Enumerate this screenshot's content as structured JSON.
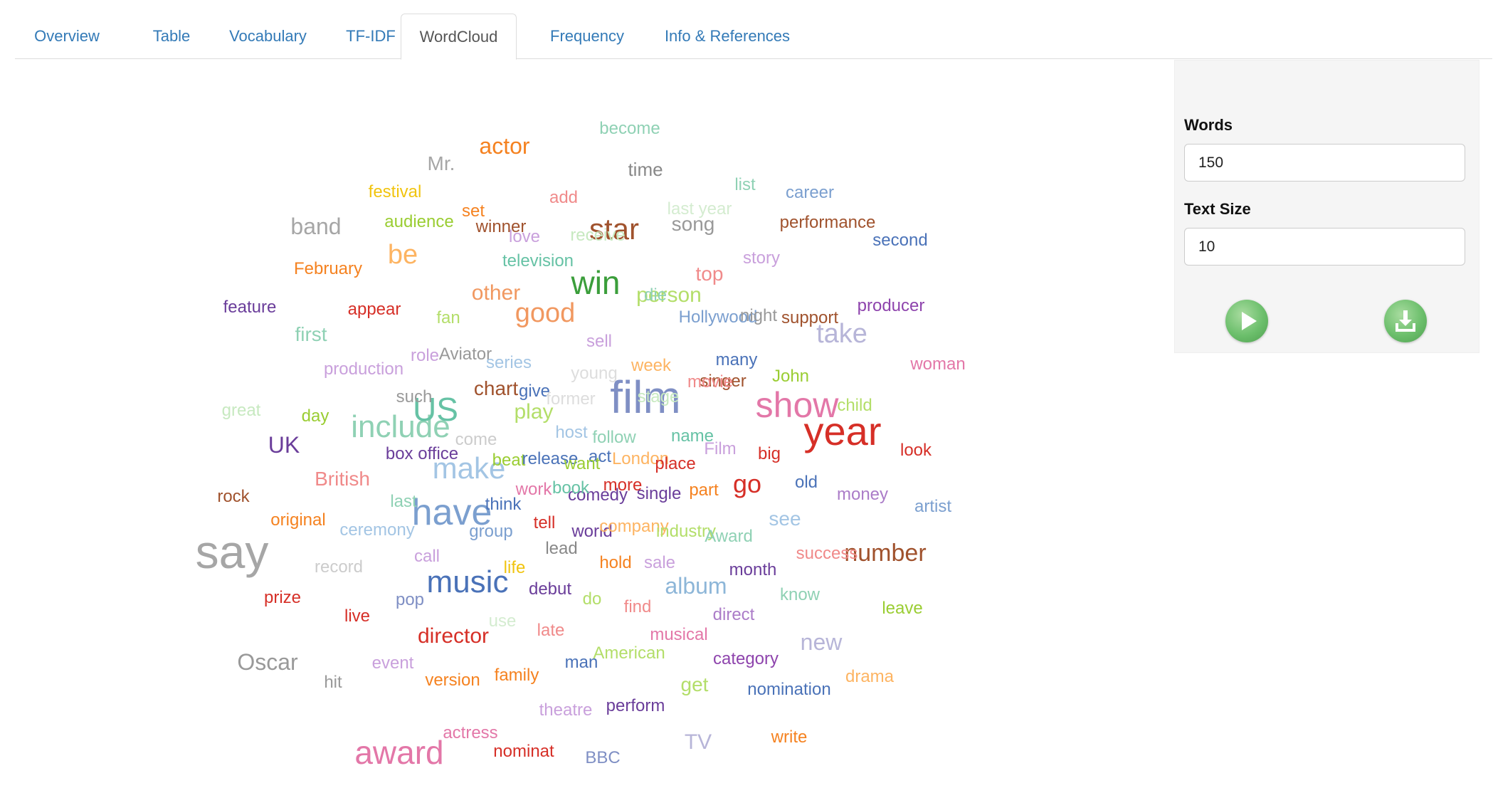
{
  "tabs": [
    {
      "label": "Overview",
      "active": false
    },
    {
      "label": "Table",
      "active": false
    },
    {
      "label": "Vocabulary",
      "active": false
    },
    {
      "label": "TF-IDF",
      "active": false
    },
    {
      "label": "WordCloud",
      "active": true
    },
    {
      "label": "Frequency",
      "active": false
    },
    {
      "label": "Info & References",
      "active": false
    }
  ],
  "controls": {
    "words_label": "Words",
    "words_value": "150",
    "text_size_label": "Text Size",
    "text_size_value": "10",
    "play_icon": "play-icon",
    "download_icon": "download-icon"
  },
  "wordcloud": [
    {
      "text": "say",
      "color": "#a6a6a6"
    },
    {
      "text": "film",
      "color": "#7f8fc4"
    },
    {
      "text": "year",
      "color": "#d62f27"
    },
    {
      "text": "show",
      "color": "#e377a8"
    },
    {
      "text": "have",
      "color": "#7b9fcf"
    },
    {
      "text": "music",
      "color": "#4a72b8"
    },
    {
      "text": "award",
      "color": "#e377a8"
    },
    {
      "text": "include",
      "color": "#8fd1b4"
    },
    {
      "text": "make",
      "color": "#a3c5e4"
    },
    {
      "text": "win",
      "color": "#3b9e3b"
    },
    {
      "text": "US",
      "color": "#66c2a5"
    },
    {
      "text": "good",
      "color": "#f19860"
    },
    {
      "text": "star",
      "color": "#a0522d"
    },
    {
      "text": "take",
      "color": "#b7b5d8"
    },
    {
      "text": "number",
      "color": "#a0522d"
    },
    {
      "text": "album",
      "color": "#8db6d8"
    },
    {
      "text": "be",
      "color": "#fdb462"
    },
    {
      "text": "Oscar",
      "color": "#999999"
    },
    {
      "text": "UK",
      "color": "#6a3d9a"
    },
    {
      "text": "go",
      "color": "#d62f27"
    },
    {
      "text": "director",
      "color": "#d62f27"
    },
    {
      "text": "actor",
      "color": "#f58220"
    },
    {
      "text": "band",
      "color": "#a6a6a6"
    },
    {
      "text": "person",
      "color": "#b3de69"
    },
    {
      "text": "other",
      "color": "#f19860"
    },
    {
      "text": "play",
      "color": "#b3de69"
    },
    {
      "text": "British",
      "color": "#f08a8a"
    },
    {
      "text": "chart",
      "color": "#a0522d"
    },
    {
      "text": "new",
      "color": "#b7b5d8"
    },
    {
      "text": "song",
      "color": "#999999"
    },
    {
      "text": "Mr.",
      "color": "#a6a6a6"
    },
    {
      "text": "TV",
      "color": "#b7b5d8"
    },
    {
      "text": "top",
      "color": "#f08a8a"
    },
    {
      "text": "first",
      "color": "#8fd1b4"
    },
    {
      "text": "see",
      "color": "#a3c5e4"
    },
    {
      "text": "time",
      "color": "#888888"
    },
    {
      "text": "Aviator",
      "color": "#999999"
    },
    {
      "text": "become",
      "color": "#8fd1b4"
    },
    {
      "text": "performance",
      "color": "#a0522d"
    },
    {
      "text": "singer",
      "color": "#a0522d"
    },
    {
      "text": "February",
      "color": "#f58220"
    },
    {
      "text": "audience",
      "color": "#9acd32"
    },
    {
      "text": "winner",
      "color": "#a0522d"
    },
    {
      "text": "television",
      "color": "#66c2a5"
    },
    {
      "text": "Hollywood",
      "color": "#7b9fcf"
    },
    {
      "text": "production",
      "color": "#c9a0dc"
    },
    {
      "text": "box office",
      "color": "#6a3d9a"
    },
    {
      "text": "comedy",
      "color": "#6a3d9a"
    },
    {
      "text": "single",
      "color": "#6a3d9a"
    },
    {
      "text": "second",
      "color": "#4a72b8"
    },
    {
      "text": "producer",
      "color": "#8e44ad"
    },
    {
      "text": "woman",
      "color": "#e377a8"
    },
    {
      "text": "artist",
      "color": "#7b9fcf"
    },
    {
      "text": "money",
      "color": "#ab7cc8"
    },
    {
      "text": "feature",
      "color": "#6a3d9a"
    },
    {
      "text": "appear",
      "color": "#d62f27"
    },
    {
      "text": "festival",
      "color": "#f1c40f"
    },
    {
      "text": "original",
      "color": "#f58220"
    },
    {
      "text": "ceremony",
      "color": "#a3c5e4"
    },
    {
      "text": "record",
      "color": "#cccccc"
    },
    {
      "text": "prize",
      "color": "#d62f27"
    },
    {
      "text": "live",
      "color": "#d62f27"
    },
    {
      "text": "pop",
      "color": "#7f8fc4"
    },
    {
      "text": "group",
      "color": "#7b9fcf"
    },
    {
      "text": "lead",
      "color": "#888888"
    },
    {
      "text": "hold",
      "color": "#f58220"
    },
    {
      "text": "sale",
      "color": "#c9a0dc"
    },
    {
      "text": "month",
      "color": "#6a3d9a"
    },
    {
      "text": "debut",
      "color": "#6a3d9a"
    },
    {
      "text": "know",
      "color": "#8fd1b4"
    },
    {
      "text": "leave",
      "color": "#9acd32"
    },
    {
      "text": "direct",
      "color": "#ab7cc8"
    },
    {
      "text": "musical",
      "color": "#e377a8"
    },
    {
      "text": "category",
      "color": "#8e44ad"
    },
    {
      "text": "drama",
      "color": "#fdb462"
    },
    {
      "text": "nomination",
      "color": "#4a72b8"
    },
    {
      "text": "write",
      "color": "#f58220"
    },
    {
      "text": "BBC",
      "color": "#7f8fc4"
    },
    {
      "text": "nominat",
      "color": "#d62f27"
    },
    {
      "text": "actress",
      "color": "#e377a8"
    },
    {
      "text": "theatre",
      "color": "#c9a0dc"
    },
    {
      "text": "perform",
      "color": "#6a3d9a"
    },
    {
      "text": "get",
      "color": "#b3de69"
    },
    {
      "text": "man",
      "color": "#4a72b8"
    },
    {
      "text": "American",
      "color": "#b3de69"
    },
    {
      "text": "family",
      "color": "#f58220"
    },
    {
      "text": "version",
      "color": "#f58220"
    },
    {
      "text": "event",
      "color": "#c9a0dc"
    },
    {
      "text": "hit",
      "color": "#999999"
    },
    {
      "text": "late",
      "color": "#f08a8a"
    },
    {
      "text": "use",
      "color": "#d4ecd0"
    },
    {
      "text": "find",
      "color": "#f08a8a"
    },
    {
      "text": "do",
      "color": "#b3de69"
    },
    {
      "text": "call",
      "color": "#c9a0dc"
    },
    {
      "text": "life",
      "color": "#f1c40f"
    },
    {
      "text": "tell",
      "color": "#d62f27"
    },
    {
      "text": "world",
      "color": "#6a3d9a"
    },
    {
      "text": "company",
      "color": "#fdb462"
    },
    {
      "text": "industry",
      "color": "#b3de69"
    },
    {
      "text": "Award",
      "color": "#8fd1b4"
    },
    {
      "text": "success",
      "color": "#f08a8a"
    },
    {
      "text": "think",
      "color": "#4a72b8"
    },
    {
      "text": "last",
      "color": "#8fd1b4"
    },
    {
      "text": "work",
      "color": "#e377a8"
    },
    {
      "text": "book",
      "color": "#66c2a5"
    },
    {
      "text": "more",
      "color": "#d62f27"
    },
    {
      "text": "part",
      "color": "#f58220"
    },
    {
      "text": "old",
      "color": "#4a72b8"
    },
    {
      "text": "rock",
      "color": "#a0522d"
    },
    {
      "text": "beat",
      "color": "#9acd32"
    },
    {
      "text": "release",
      "color": "#4a72b8"
    },
    {
      "text": "act",
      "color": "#4a72b8"
    },
    {
      "text": "want",
      "color": "#9acd32"
    },
    {
      "text": "London",
      "color": "#fdb462"
    },
    {
      "text": "place",
      "color": "#d62f27"
    },
    {
      "text": "Film",
      "color": "#c9a0dc"
    },
    {
      "text": "big",
      "color": "#d62f27"
    },
    {
      "text": "look",
      "color": "#d62f27"
    },
    {
      "text": "come",
      "color": "#cccccc"
    },
    {
      "text": "host",
      "color": "#a3c5e4"
    },
    {
      "text": "follow",
      "color": "#8fd1b4"
    },
    {
      "text": "name",
      "color": "#66c2a5"
    },
    {
      "text": "great",
      "color": "#c7e9c0"
    },
    {
      "text": "day",
      "color": "#9acd32"
    },
    {
      "text": "such",
      "color": "#999999"
    },
    {
      "text": "give",
      "color": "#4a72b8"
    },
    {
      "text": "former",
      "color": "#dddddd"
    },
    {
      "text": "stage",
      "color": "#c7e9c0"
    },
    {
      "text": "movie",
      "color": "#f08a8a"
    },
    {
      "text": "child",
      "color": "#b3de69"
    },
    {
      "text": "John",
      "color": "#9acd32"
    },
    {
      "text": "many",
      "color": "#4a72b8"
    },
    {
      "text": "week",
      "color": "#fdb462"
    },
    {
      "text": "young",
      "color": "#dddddd"
    },
    {
      "text": "series",
      "color": "#a3c5e4"
    },
    {
      "text": "role",
      "color": "#c9a0dc"
    },
    {
      "text": "sell",
      "color": "#c9a0dc"
    },
    {
      "text": "fan",
      "color": "#b3de69"
    },
    {
      "text": "die",
      "color": "#8fd1b4"
    },
    {
      "text": "night",
      "color": "#999999"
    },
    {
      "text": "support",
      "color": "#a0522d"
    },
    {
      "text": "story",
      "color": "#c9a0dc"
    },
    {
      "text": "love",
      "color": "#c9a0dc"
    },
    {
      "text": "receive",
      "color": "#c7e9c0"
    },
    {
      "text": "set",
      "color": "#f58220"
    },
    {
      "text": "add",
      "color": "#f08a8a"
    },
    {
      "text": "last year",
      "color": "#d4ecd0"
    },
    {
      "text": "list",
      "color": "#8fd1b4"
    },
    {
      "text": "career",
      "color": "#7b9fcf"
    }
  ]
}
